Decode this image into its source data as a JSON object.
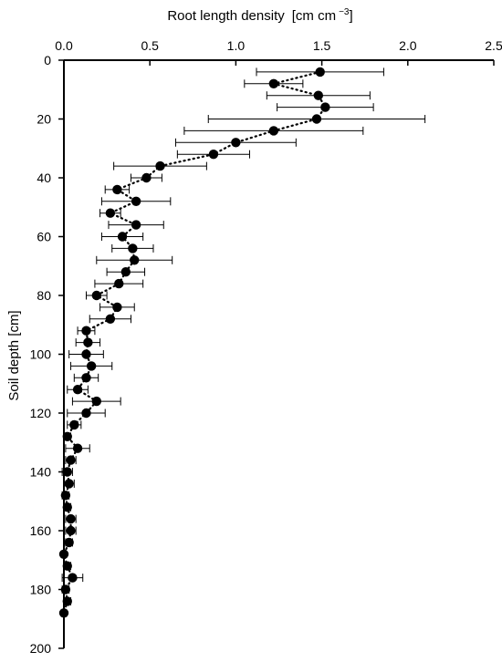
{
  "chart_data": {
    "type": "scatter",
    "xlabel": "Root length density",
    "xlabel_unit": "[cm cm",
    "xlabel_unit_exp": "−3",
    "xlabel_unit_close": "]",
    "ylabel": "Soil depth [cm]",
    "x_axis_position": "top",
    "y_inverted": true,
    "xlim": [
      0,
      2.5
    ],
    "ylim": [
      0,
      200
    ],
    "grid": false,
    "x_ticks": [
      "0.0",
      "0.5",
      "1.0",
      "1.5",
      "2.0",
      "2.5"
    ],
    "y_ticks": [
      "0",
      "20",
      "40",
      "60",
      "80",
      "100",
      "120",
      "140",
      "160",
      "180",
      "200"
    ],
    "marker_color": "#000000",
    "connector_style": "dotted",
    "series": [
      {
        "depth": [
          4,
          8,
          12,
          16,
          20,
          24,
          28,
          32,
          36,
          40,
          44,
          48,
          52,
          56,
          60,
          64,
          68,
          72,
          76,
          80,
          84,
          88,
          92,
          96,
          100,
          104,
          108,
          112,
          116,
          120,
          124,
          128,
          132,
          136,
          140,
          144,
          148,
          152,
          156,
          160,
          164,
          168,
          172,
          176,
          180,
          184,
          188
        ],
        "rld": [
          1.49,
          1.22,
          1.48,
          1.52,
          1.47,
          1.22,
          1.0,
          0.87,
          0.56,
          0.48,
          0.31,
          0.42,
          0.27,
          0.42,
          0.34,
          0.4,
          0.41,
          0.36,
          0.32,
          0.19,
          0.31,
          0.27,
          0.13,
          0.14,
          0.13,
          0.16,
          0.13,
          0.08,
          0.19,
          0.13,
          0.06,
          0.02,
          0.08,
          0.04,
          0.02,
          0.03,
          0.01,
          0.02,
          0.04,
          0.04,
          0.03,
          0.0,
          0.02,
          0.05,
          0.01,
          0.02,
          0.0
        ],
        "rld_err": [
          0.37,
          0.17,
          0.3,
          0.28,
          0.63,
          0.52,
          0.35,
          0.21,
          0.27,
          0.09,
          0.07,
          0.2,
          0.06,
          0.16,
          0.12,
          0.12,
          0.22,
          0.11,
          0.14,
          0.06,
          0.1,
          0.12,
          0.05,
          0.07,
          0.1,
          0.12,
          0.07,
          0.06,
          0.14,
          0.11,
          0.04,
          0.02,
          0.07,
          0.03,
          0.03,
          0.03,
          0.02,
          0.02,
          0.03,
          0.03,
          0.02,
          0.01,
          0.02,
          0.06,
          0.02,
          0.02,
          0.01
        ]
      }
    ]
  }
}
